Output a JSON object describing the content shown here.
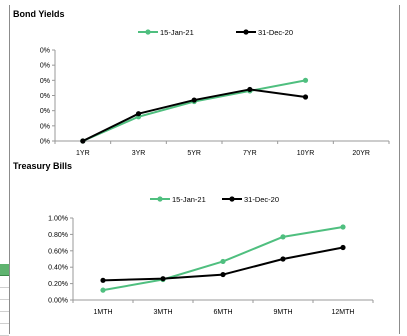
{
  "chart_data": [
    {
      "type": "line",
      "title": "Bond Yields",
      "categories": [
        "1YR",
        "3YR",
        "5YR",
        "7YR",
        "10YR",
        "20YR"
      ],
      "y_tick_labels": [
        "0%",
        "0%",
        "0%",
        "0%",
        "0%",
        "0%",
        "0%"
      ],
      "ylim": [
        0,
        6
      ],
      "grid": false,
      "legend_position": "top",
      "series": [
        {
          "name": "15-Jan-21",
          "color": "#4fbf7f",
          "values": [
            0.0,
            1.6,
            2.6,
            3.3,
            4.0,
            null
          ]
        },
        {
          "name": "31-Dec-20",
          "color": "#000000",
          "values": [
            0.0,
            1.8,
            2.7,
            3.4,
            2.9,
            null
          ]
        }
      ]
    },
    {
      "type": "line",
      "title": "Treasury  Bills",
      "categories": [
        "1MTH",
        "3MTH",
        "6MTH",
        "9MTH",
        "12MTH"
      ],
      "y_tick_labels": [
        "0.00%",
        "0.20%",
        "0.40%",
        "0.60%",
        "0.80%",
        "1.00%"
      ],
      "ylim": [
        0,
        1.0
      ],
      "grid": false,
      "legend_position": "top",
      "series": [
        {
          "name": "15-Jan-21",
          "color": "#4fbf7f",
          "values": [
            0.12,
            0.25,
            0.47,
            0.77,
            0.89
          ]
        },
        {
          "name": "31-Dec-20",
          "color": "#000000",
          "values": [
            0.24,
            0.26,
            0.31,
            0.5,
            0.64
          ]
        }
      ]
    }
  ]
}
